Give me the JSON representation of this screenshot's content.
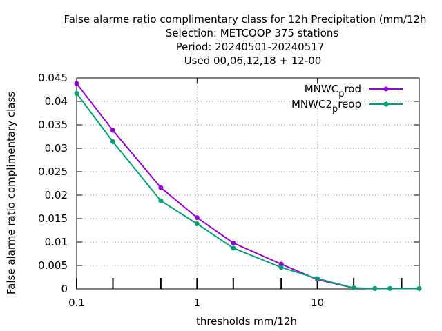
{
  "chart_data": {
    "type": "line",
    "title_lines": [
      "False alarme ratio complimentary class  for 12h Precipitation (mm/12h",
      "Selection: METCOOP    375 stations",
      "Period: 20240501-20240517",
      "Used  00,06,12,18 + 12-00"
    ],
    "xlabel": "thresholds mm/12h",
    "ylabel": "False alarme ratio complimentary class",
    "x_scale": "log",
    "xlim": [
      0.1,
      70
    ],
    "ylim": [
      0,
      0.045
    ],
    "x_ticks": [
      0.1,
      1,
      10
    ],
    "x_tick_labels": [
      "0.1",
      "1",
      "10"
    ],
    "y_ticks": [
      0,
      0.005,
      0.01,
      0.015,
      0.02,
      0.025,
      0.03,
      0.035,
      0.04,
      0.045
    ],
    "y_tick_labels": [
      "0",
      "0.005",
      "0.01",
      "0.015",
      "0.02",
      "0.025",
      "0.03",
      "0.035",
      "0.04",
      "0.045"
    ],
    "grid": true,
    "legend_position": "top-right",
    "series": [
      {
        "name_main": "MNWC",
        "name_sub": "p",
        "name_rest": "rod",
        "color": "#9400d3",
        "x": [
          0.1,
          0.2,
          0.5,
          1,
          2,
          5,
          10,
          20,
          30,
          40,
          70
        ],
        "y": [
          0.0438,
          0.0338,
          0.0216,
          0.0152,
          0.0098,
          0.0053,
          0.002,
          0.0002,
          0.0001,
          0.0001,
          0.0001
        ]
      },
      {
        "name_main": "MNWC2",
        "name_sub": "p",
        "name_rest": "reop",
        "color": "#009e73",
        "x": [
          0.1,
          0.2,
          0.5,
          1,
          2,
          5,
          10,
          20,
          30,
          40,
          70
        ],
        "y": [
          0.0417,
          0.0314,
          0.0188,
          0.0139,
          0.0087,
          0.0046,
          0.0022,
          0.0002,
          0.0001,
          0.0001,
          0.0001
        ]
      }
    ]
  }
}
